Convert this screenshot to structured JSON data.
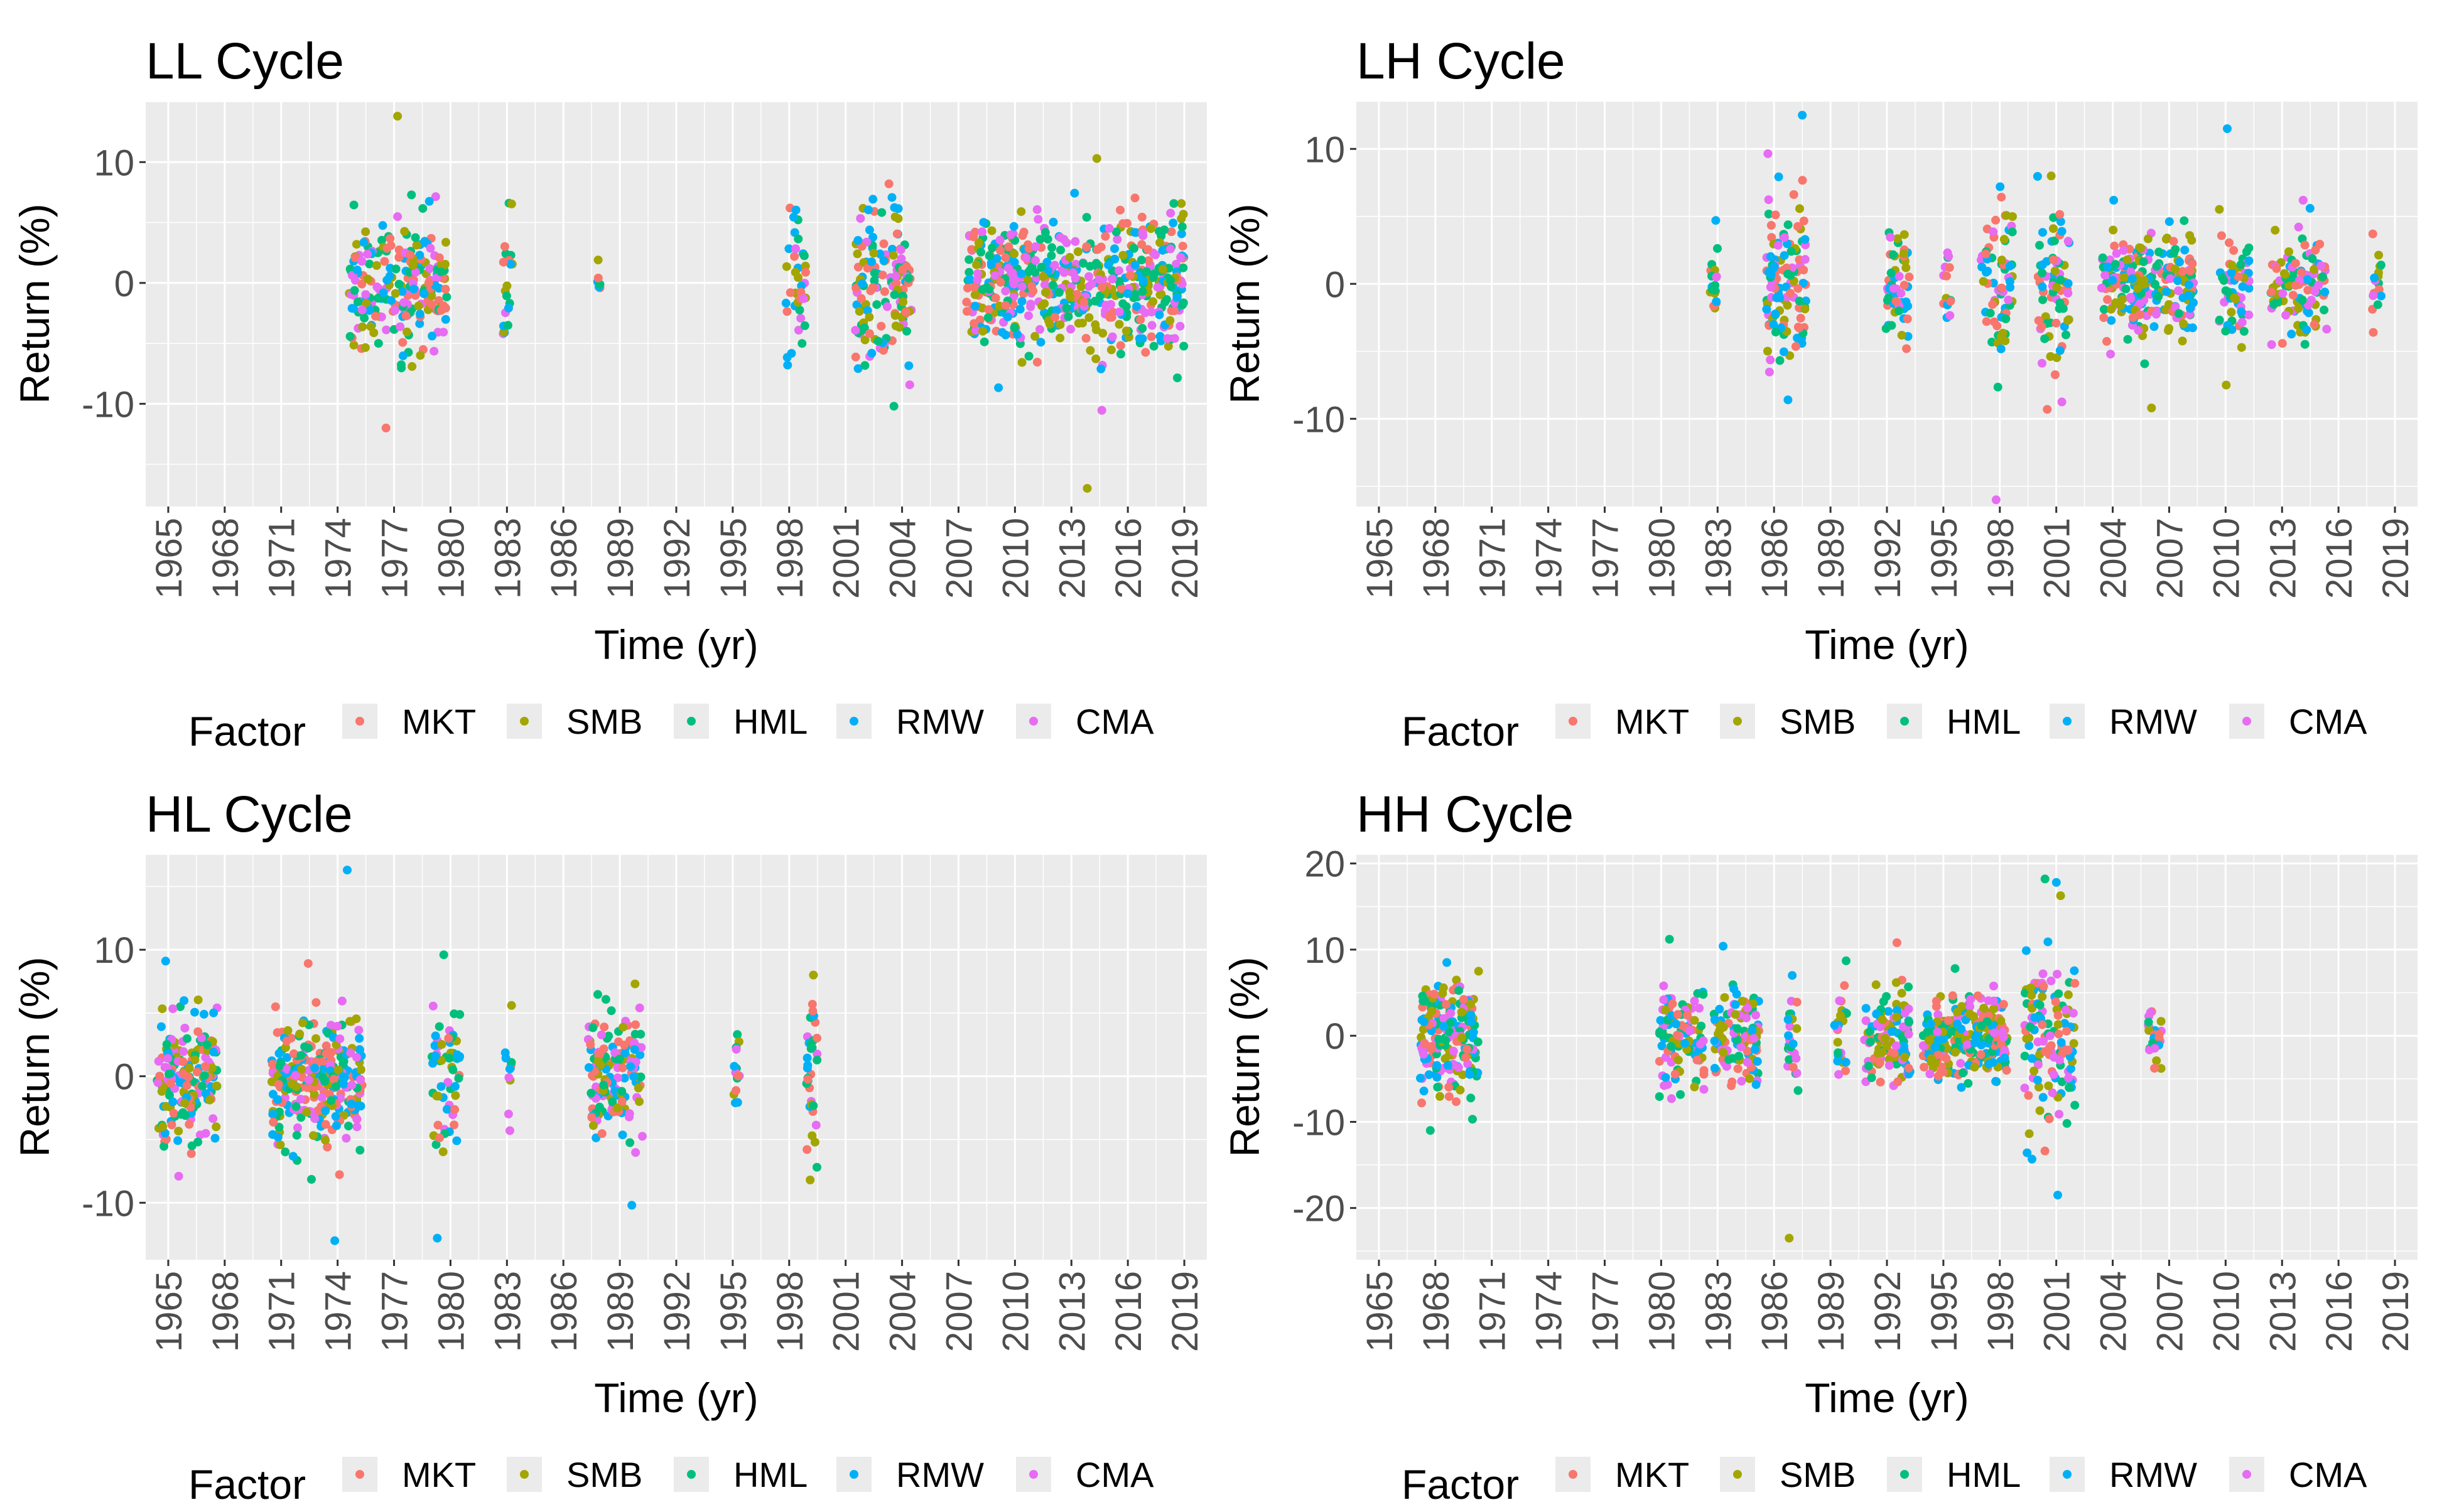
{
  "colors": {
    "MKT": "#F8766D",
    "SMB": "#A3A500",
    "HML": "#00BF7D",
    "RMW": "#00B0F6",
    "CMA": "#E76BF3",
    "panel_bg": "#EBEBEB",
    "grid": "#FFFFFF"
  },
  "legend": {
    "title": "Factor",
    "items": [
      "MKT",
      "SMB",
      "HML",
      "RMW",
      "CMA"
    ]
  },
  "chart_data": [
    {
      "type": "scatter",
      "title": "LL Cycle",
      "xlabel": "Time (yr)",
      "ylabel": "Return (%)",
      "xlim": [
        1963.8,
        2020.2
      ],
      "ylim": [
        -18.5,
        15
      ],
      "x_ticks": [
        1965,
        1968,
        1971,
        1974,
        1977,
        1980,
        1983,
        1986,
        1989,
        1992,
        1995,
        1998,
        2001,
        2004,
        2007,
        2010,
        2013,
        2016,
        2019
      ],
      "y_ticks": [
        -10,
        0,
        10
      ],
      "series_names": [
        "MKT",
        "SMB",
        "HML",
        "RMW",
        "CMA"
      ],
      "clusters": [
        {
          "start": 1974.6,
          "end": 1979.8,
          "ymin": -12,
          "ymax": 13.8,
          "spread": 2.6,
          "n": 230
        },
        {
          "start": 1982.8,
          "end": 1983.3,
          "ymin": -4.2,
          "ymax": 6.6,
          "spread": 2.5,
          "n": 20
        },
        {
          "start": 1987.8,
          "end": 1988.0,
          "ymin": -0.4,
          "ymax": 1.9,
          "spread": 0.8,
          "n": 6
        },
        {
          "start": 1997.8,
          "end": 1998.9,
          "ymin": -6.8,
          "ymax": 6.2,
          "spread": 3.2,
          "n": 38
        },
        {
          "start": 2001.5,
          "end": 2004.5,
          "ymin": -10.2,
          "ymax": 8.2,
          "spread": 3.2,
          "n": 150
        },
        {
          "start": 2007.4,
          "end": 2019.0,
          "ymin": -17,
          "ymax": 10.3,
          "spread": 2.9,
          "n": 560
        }
      ]
    },
    {
      "type": "scatter",
      "title": "LH Cycle",
      "xlabel": "Time (yr)",
      "ylabel": "Return (%)",
      "xlim": [
        1963.8,
        2020.2
      ],
      "ylim": [
        -16.5,
        13.5
      ],
      "x_ticks": [
        1965,
        1968,
        1971,
        1974,
        1977,
        1980,
        1983,
        1986,
        1989,
        1992,
        1995,
        1998,
        2001,
        2004,
        2007,
        2010,
        2013,
        2016,
        2019
      ],
      "y_ticks": [
        -10,
        0,
        10
      ],
      "series_names": [
        "MKT",
        "SMB",
        "HML",
        "RMW",
        "CMA"
      ],
      "clusters": [
        {
          "start": 1982.6,
          "end": 1983.0,
          "ymin": -1.8,
          "ymax": 4.7,
          "spread": 1.5,
          "n": 20
        },
        {
          "start": 1985.6,
          "end": 1987.7,
          "ymin": -8.6,
          "ymax": 12.5,
          "spread": 2.7,
          "n": 120
        },
        {
          "start": 1991.9,
          "end": 1993.2,
          "ymin": -4.8,
          "ymax": 3.8,
          "spread": 2.0,
          "n": 60
        },
        {
          "start": 1995.0,
          "end": 1995.4,
          "ymin": -2.5,
          "ymax": 2.3,
          "spread": 1.4,
          "n": 14
        },
        {
          "start": 1997.0,
          "end": 1998.7,
          "ymin": -16,
          "ymax": 7.2,
          "spread": 2.8,
          "n": 70
        },
        {
          "start": 2000.0,
          "end": 2001.7,
          "ymin": -9.3,
          "ymax": 8,
          "spread": 3.5,
          "n": 70
        },
        {
          "start": 2003.4,
          "end": 2008.3,
          "ymin": -9.2,
          "ymax": 6.2,
          "spread": 1.9,
          "n": 230
        },
        {
          "start": 2009.6,
          "end": 2011.3,
          "ymin": -7.5,
          "ymax": 11.5,
          "spread": 2.1,
          "n": 60
        },
        {
          "start": 2012.4,
          "end": 2015.4,
          "ymin": -4.5,
          "ymax": 6.2,
          "spread": 1.8,
          "n": 110
        },
        {
          "start": 2017.8,
          "end": 2018.3,
          "ymin": -3.6,
          "ymax": 3.7,
          "spread": 1.5,
          "n": 16
        }
      ]
    },
    {
      "type": "scatter",
      "title": "HL Cycle",
      "xlabel": "Time (yr)",
      "ylabel": "Return (%)",
      "xlim": [
        1963.8,
        2020.2
      ],
      "ylim": [
        -14.5,
        17.5
      ],
      "x_ticks": [
        1965,
        1968,
        1971,
        1974,
        1977,
        1980,
        1983,
        1986,
        1989,
        1992,
        1995,
        1998,
        2001,
        2004,
        2007,
        2010,
        2013,
        2016,
        2019
      ],
      "y_ticks": [
        -10,
        0,
        10
      ],
      "series_names": [
        "MKT",
        "SMB",
        "HML",
        "RMW",
        "CMA"
      ],
      "clusters": [
        {
          "start": 1964.4,
          "end": 1967.6,
          "ymin": -7.9,
          "ymax": 9.1,
          "spread": 2.5,
          "n": 180
        },
        {
          "start": 1970.5,
          "end": 1975.3,
          "ymin": -13,
          "ymax": 16.3,
          "spread": 2.7,
          "n": 300
        },
        {
          "start": 1979.0,
          "end": 1980.5,
          "ymin": -12.8,
          "ymax": 9.6,
          "spread": 2.7,
          "n": 60
        },
        {
          "start": 1982.9,
          "end": 1983.3,
          "ymin": -4.3,
          "ymax": 5.6,
          "spread": 1.8,
          "n": 12
        },
        {
          "start": 1987.3,
          "end": 1990.2,
          "ymin": -10.2,
          "ymax": 7.3,
          "spread": 2.4,
          "n": 150
        },
        {
          "start": 1995.0,
          "end": 1995.4,
          "ymin": -2.1,
          "ymax": 3.3,
          "spread": 1.4,
          "n": 14
        },
        {
          "start": 1998.9,
          "end": 1999.5,
          "ymin": -8.2,
          "ymax": 8,
          "spread": 3.5,
          "n": 36
        }
      ]
    },
    {
      "type": "scatter",
      "title": "HH Cycle",
      "xlabel": "Time (yr)",
      "ylabel": "Return (%)",
      "xlim": [
        1963.8,
        2020.2
      ],
      "ylim": [
        -26,
        21
      ],
      "x_ticks": [
        1965,
        1968,
        1971,
        1974,
        1977,
        1980,
        1983,
        1986,
        1989,
        1992,
        1995,
        1998,
        2001,
        2004,
        2007,
        2010,
        2013,
        2016,
        2019
      ],
      "y_ticks": [
        -20,
        -10,
        0,
        10,
        20
      ],
      "series_names": [
        "MKT",
        "SMB",
        "HML",
        "RMW",
        "CMA"
      ],
      "clusters": [
        {
          "start": 1967.2,
          "end": 1970.3,
          "ymin": -11,
          "ymax": 8.5,
          "spread": 3.2,
          "n": 200
        },
        {
          "start": 1979.9,
          "end": 1982.3,
          "ymin": -7.3,
          "ymax": 11.2,
          "spread": 3.0,
          "n": 110
        },
        {
          "start": 1982.8,
          "end": 1985.2,
          "ymin": -5.8,
          "ymax": 10.4,
          "spread": 3.0,
          "n": 110
        },
        {
          "start": 1986.7,
          "end": 1987.3,
          "ymin": -23.5,
          "ymax": 7,
          "spread": 3.6,
          "n": 25
        },
        {
          "start": 1989.2,
          "end": 1989.9,
          "ymin": -4.5,
          "ymax": 8.7,
          "spread": 2.6,
          "n": 25
        },
        {
          "start": 1990.8,
          "end": 1993.3,
          "ymin": -5.8,
          "ymax": 10.8,
          "spread": 3.0,
          "n": 110
        },
        {
          "start": 1993.9,
          "end": 1998.4,
          "ymin": -6,
          "ymax": 7.8,
          "spread": 2.5,
          "n": 240
        },
        {
          "start": 1999.3,
          "end": 2002.0,
          "ymin": -18.5,
          "ymax": 18.2,
          "spread": 5.5,
          "n": 130
        },
        {
          "start": 2005.8,
          "end": 2006.6,
          "ymin": -3.8,
          "ymax": 2.8,
          "spread": 1.5,
          "n": 26
        }
      ]
    }
  ]
}
